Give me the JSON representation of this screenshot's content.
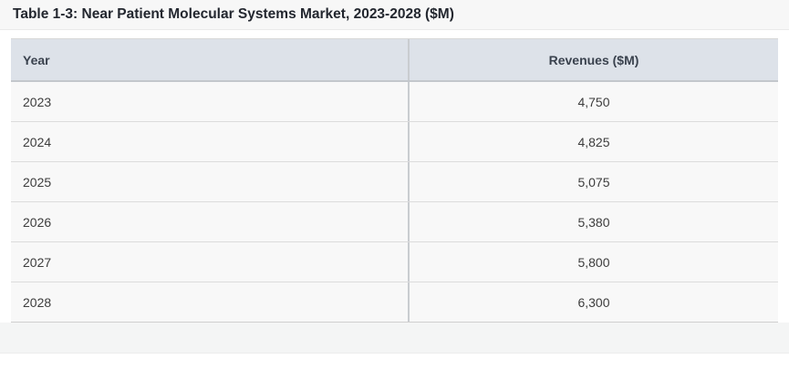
{
  "title": {
    "text": "Table 1-3: Near Patient Molecular Systems Market, 2023-2028 ($M)"
  },
  "table": {
    "columns": [
      {
        "label": "Year"
      },
      {
        "label": "Revenues ($M)"
      }
    ],
    "rows": [
      {
        "year": "2023",
        "revenue": "4,750"
      },
      {
        "year": "2024",
        "revenue": "4,825"
      },
      {
        "year": "2025",
        "revenue": "5,075"
      },
      {
        "year": "2026",
        "revenue": "5,380"
      },
      {
        "year": "2027",
        "revenue": "5,800"
      },
      {
        "year": "2028",
        "revenue": "6,300"
      }
    ]
  },
  "colors": {
    "title_bar_background": "#f7f7f7",
    "title_text": "#23272f",
    "header_background": "#dde2e9",
    "header_text": "#3a424e",
    "header_bottom_border": "#c3c7cc",
    "row_background": "#f8f8f8",
    "row_separator": "#dcdcdc",
    "column_divider": "#c9ccd0",
    "body_text": "#3d3d3d",
    "footer_band_background": "#f4f5f5"
  },
  "chart_data": {
    "type": "table",
    "title": "Table 1-3: Near Patient Molecular Systems Market, 2023-2028 ($M)",
    "columns": [
      "Year",
      "Revenues ($M)"
    ],
    "x": [
      2023,
      2024,
      2025,
      2026,
      2027,
      2028
    ],
    "values": [
      4750,
      4825,
      5075,
      5380,
      5800,
      6300
    ]
  }
}
